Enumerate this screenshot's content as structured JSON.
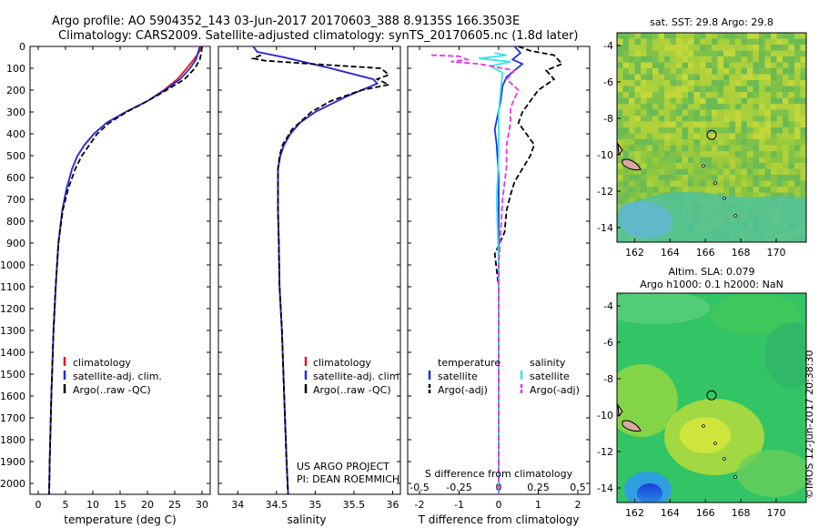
{
  "header": {
    "line1": "Argo profile: AO 5904352_143 03-Jun-2017 20170603_388 8.9135S 166.3503E",
    "line2": "Climatology: CARS2009. Satellite-adjusted climatology: synTS_20170605.nc (1.8d later)"
  },
  "colors": {
    "climatology": "#e8141b",
    "satellite": "#1f2fe6",
    "argo": "#000000",
    "sal_satellite": "#35e6e6",
    "sal_argo": "#e635e6"
  },
  "depth_axis": {
    "range": [
      0,
      2050
    ],
    "ticks": [
      "0",
      "100",
      "200",
      "300",
      "400",
      "500",
      "600",
      "700",
      "800",
      "900",
      "1000",
      "1100",
      "1200",
      "1300",
      "1400",
      "1500",
      "1600",
      "1700",
      "1800",
      "1900",
      "2000"
    ]
  },
  "chart_data": [
    {
      "id": "temperature",
      "type": "line",
      "xlabel": "temperature (deg C)",
      "xlim": [
        -1.5,
        31.5
      ],
      "xticks": [
        0,
        5,
        10,
        15,
        20,
        25,
        30
      ],
      "xtick_labels": [
        "0",
        "5",
        "10",
        "15",
        "20",
        "25",
        "30"
      ],
      "ylim": [
        0,
        2050
      ],
      "legend": [
        "climatology",
        "satellite-adj. clim.",
        "Argo(..raw -QC)"
      ],
      "series": [
        {
          "name": "climatology",
          "style": "solid",
          "color_key": "climatology",
          "x": [
            29.8,
            29.5,
            28.5,
            27.2,
            25.5,
            23,
            20,
            16,
            12.5,
            10.2,
            8.5,
            7.2,
            6.2,
            5.2,
            4.4,
            3.7,
            3.2,
            2.8,
            2.4,
            2.1,
            2.0
          ],
          "y": [
            0,
            25,
            60,
            100,
            150,
            200,
            250,
            300,
            350,
            400,
            450,
            500,
            560,
            650,
            750,
            900,
            1100,
            1300,
            1600,
            1900,
            2050
          ]
        },
        {
          "name": "satellite-adj. clim.",
          "style": "solid",
          "color_key": "satellite",
          "x": [
            29.6,
            29.3,
            28.9,
            27.8,
            26,
            23.2,
            20,
            16,
            12.5,
            10.2,
            8.5,
            7.2,
            6.2,
            5.2,
            4.4,
            3.7,
            3.2,
            2.8,
            2.4,
            2.1,
            2.0
          ],
          "y": [
            0,
            25,
            60,
            100,
            150,
            200,
            250,
            300,
            350,
            400,
            450,
            500,
            560,
            650,
            750,
            900,
            1100,
            1300,
            1600,
            1900,
            2050
          ]
        },
        {
          "name": "Argo(..raw -QC)",
          "style": "dashed",
          "color_key": "argo",
          "x": [
            30,
            29.9,
            29.6,
            28.7,
            26.8,
            23.5,
            20,
            16.2,
            13,
            10.8,
            9.4,
            8,
            6.8,
            5.5,
            4.5,
            3.7,
            3.2,
            2.8,
            2.4,
            2.1,
            2.0
          ],
          "y": [
            0,
            25,
            60,
            100,
            150,
            200,
            250,
            300,
            350,
            400,
            450,
            500,
            560,
            650,
            750,
            900,
            1100,
            1300,
            1600,
            1900,
            2050
          ]
        }
      ]
    },
    {
      "id": "salinity",
      "type": "line",
      "xlabel": "salinity",
      "xlim": [
        33.75,
        36.1
      ],
      "xticks": [
        34,
        34.5,
        35,
        35.5,
        36
      ],
      "xtick_labels": [
        "34",
        "34.5",
        "35",
        "35.5",
        "36"
      ],
      "ylim": [
        0,
        2050
      ],
      "legend": [
        "climatology",
        "satellite-adj. clim.",
        "Argo(..raw -QC)"
      ],
      "annotation": [
        "US ARGO PROJECT",
        "PI: DEAN ROEMMICH"
      ],
      "series": [
        {
          "name": "climatology",
          "style": "solid",
          "color_key": "climatology",
          "x": [
            34.2,
            34.25,
            34.6,
            35.2,
            35.75,
            35.8,
            35.4,
            35.0,
            34.8,
            34.68,
            34.6,
            34.55,
            34.52,
            34.52,
            34.52,
            34.53,
            34.54,
            34.57,
            34.6,
            34.63,
            34.65
          ],
          "y": [
            0,
            25,
            50,
            100,
            150,
            170,
            230,
            300,
            350,
            400,
            450,
            500,
            560,
            650,
            750,
            900,
            1100,
            1300,
            1600,
            1900,
            2050
          ]
        },
        {
          "name": "satellite-adj. clim.",
          "style": "solid",
          "color_key": "satellite",
          "x": [
            34.2,
            34.25,
            34.6,
            35.2,
            35.75,
            35.8,
            35.4,
            35.0,
            34.8,
            34.68,
            34.6,
            34.55,
            34.52,
            34.52,
            34.52,
            34.53,
            34.54,
            34.57,
            34.6,
            34.63,
            34.65
          ],
          "y": [
            0,
            25,
            50,
            100,
            150,
            170,
            230,
            300,
            350,
            400,
            450,
            500,
            560,
            650,
            750,
            900,
            1100,
            1300,
            1600,
            1900,
            2050
          ]
        },
        {
          "name": "Argo(..raw -QC)",
          "style": "dashed",
          "color_key": "argo",
          "x": [
            34.3,
            34.2,
            34.35,
            34.95,
            35.85,
            35.95,
            35.8,
            35.95,
            35.6,
            35.2,
            34.95,
            34.7,
            34.58,
            34.54,
            34.52,
            34.52,
            34.52,
            34.53,
            34.54,
            34.57,
            34.6,
            34.63,
            34.65
          ],
          "y": [
            40,
            55,
            65,
            80,
            100,
            130,
            150,
            175,
            200,
            250,
            300,
            380,
            450,
            500,
            560,
            650,
            750,
            900,
            1100,
            1300,
            1600,
            1900,
            2050
          ]
        }
      ]
    },
    {
      "id": "differences",
      "type": "line",
      "xlabel": "T difference from climatology",
      "xlabel_top": "S difference from climatology",
      "xlim": [
        -2.3,
        2.3
      ],
      "xticks": [
        -2,
        -1,
        0,
        1,
        2
      ],
      "xtick_labels": [
        "-2",
        "-1",
        "0",
        "1",
        "2"
      ],
      "s_ticks": [
        -0.5,
        -0.25,
        0,
        0.25,
        0.5
      ],
      "s_tick_labels": [
        "-0.5",
        "-0.25",
        "0",
        "0.25",
        "0.5"
      ],
      "ylim": [
        0,
        2050
      ],
      "legend_temperature": [
        "temperature",
        "satellite",
        "Argo(-adj)"
      ],
      "legend_salinity": [
        "salinity",
        "satellite",
        "Argo(-adj)"
      ],
      "series": [
        {
          "name": "satellite",
          "group": "temperature",
          "style": "solid",
          "color_key": "satellite",
          "x": [
            0.4,
            0.55,
            0.35,
            0.6,
            0.4,
            0.2,
            0.1,
            0.05,
            -0.1,
            -0.05,
            0,
            0,
            0,
            0,
            0,
            0
          ],
          "y": [
            0,
            30,
            60,
            80,
            110,
            140,
            180,
            250,
            380,
            450,
            600,
            800,
            1000,
            1400,
            1800,
            2050
          ]
        },
        {
          "name": "Argo(-adj)",
          "group": "temperature",
          "style": "dashed",
          "color_key": "argo",
          "x": [
            0.5,
            0.8,
            1.4,
            1.6,
            1.2,
            1.4,
            1.0,
            0.8,
            0.6,
            0.5,
            0.7,
            0.9,
            0.8,
            0.6,
            0.4,
            0.3,
            0.2,
            0.15,
            -0.1,
            0,
            0,
            0,
            0
          ],
          "y": [
            0,
            20,
            40,
            80,
            110,
            150,
            200,
            250,
            300,
            350,
            400,
            450,
            500,
            560,
            620,
            680,
            750,
            850,
            950,
            1100,
            1400,
            1800,
            2050
          ]
        },
        {
          "name": "satellite",
          "group": "salinity",
          "style": "solid",
          "color_key": "sal_satellite",
          "x": [
            -0.1,
            0.2,
            -0.5,
            0.3,
            -0.2,
            0.1,
            0.05,
            0,
            0,
            -0.05,
            0,
            0,
            0,
            0
          ],
          "y": [
            30,
            40,
            55,
            70,
            90,
            120,
            200,
            300,
            500,
            700,
            1000,
            1400,
            1800,
            2050
          ]
        },
        {
          "name": "Argo(-adj)",
          "group": "salinity",
          "style": "dashed",
          "color_key": "sal_argo",
          "x": [
            -1.7,
            -1.0,
            -0.8,
            -1.2,
            -0.5,
            0.4,
            0.2,
            0.5,
            0.3,
            0.3,
            0.2,
            0.2,
            0.1,
            0,
            0
          ],
          "y": [
            40,
            45,
            60,
            70,
            80,
            110,
            150,
            200,
            280,
            350,
            450,
            550,
            700,
            1000,
            2050
          ]
        }
      ]
    },
    {
      "id": "sst_map",
      "type": "heatmap",
      "title": "sat. SST: 29.8 Argo: 29.8",
      "xticks": [
        "162",
        "164",
        "166",
        "168",
        "170"
      ],
      "yticks": [
        "-4",
        "-6",
        "-8",
        "-10",
        "-12",
        "-14"
      ],
      "xlim": [
        161,
        171.7
      ],
      "ylim": [
        -14.8,
        -3.3
      ],
      "marker": {
        "lon": 166.35,
        "lat": -8.91
      }
    },
    {
      "id": "sla_map",
      "type": "heatmap",
      "title_lines": [
        "Altim. SLA: 0.079",
        "Argo h1000: 0.1 h2000: NaN"
      ],
      "xticks": [
        "162",
        "164",
        "166",
        "168",
        "170"
      ],
      "yticks": [
        "-4",
        "-6",
        "-8",
        "-10",
        "-12",
        "-14"
      ],
      "xlim": [
        161,
        171.7
      ],
      "ylim": [
        -14.8,
        -3.3
      ],
      "marker": {
        "lon": 166.35,
        "lat": -8.91
      }
    }
  ],
  "credit": "©IMOS 12-Jun-2017 20:38:30"
}
